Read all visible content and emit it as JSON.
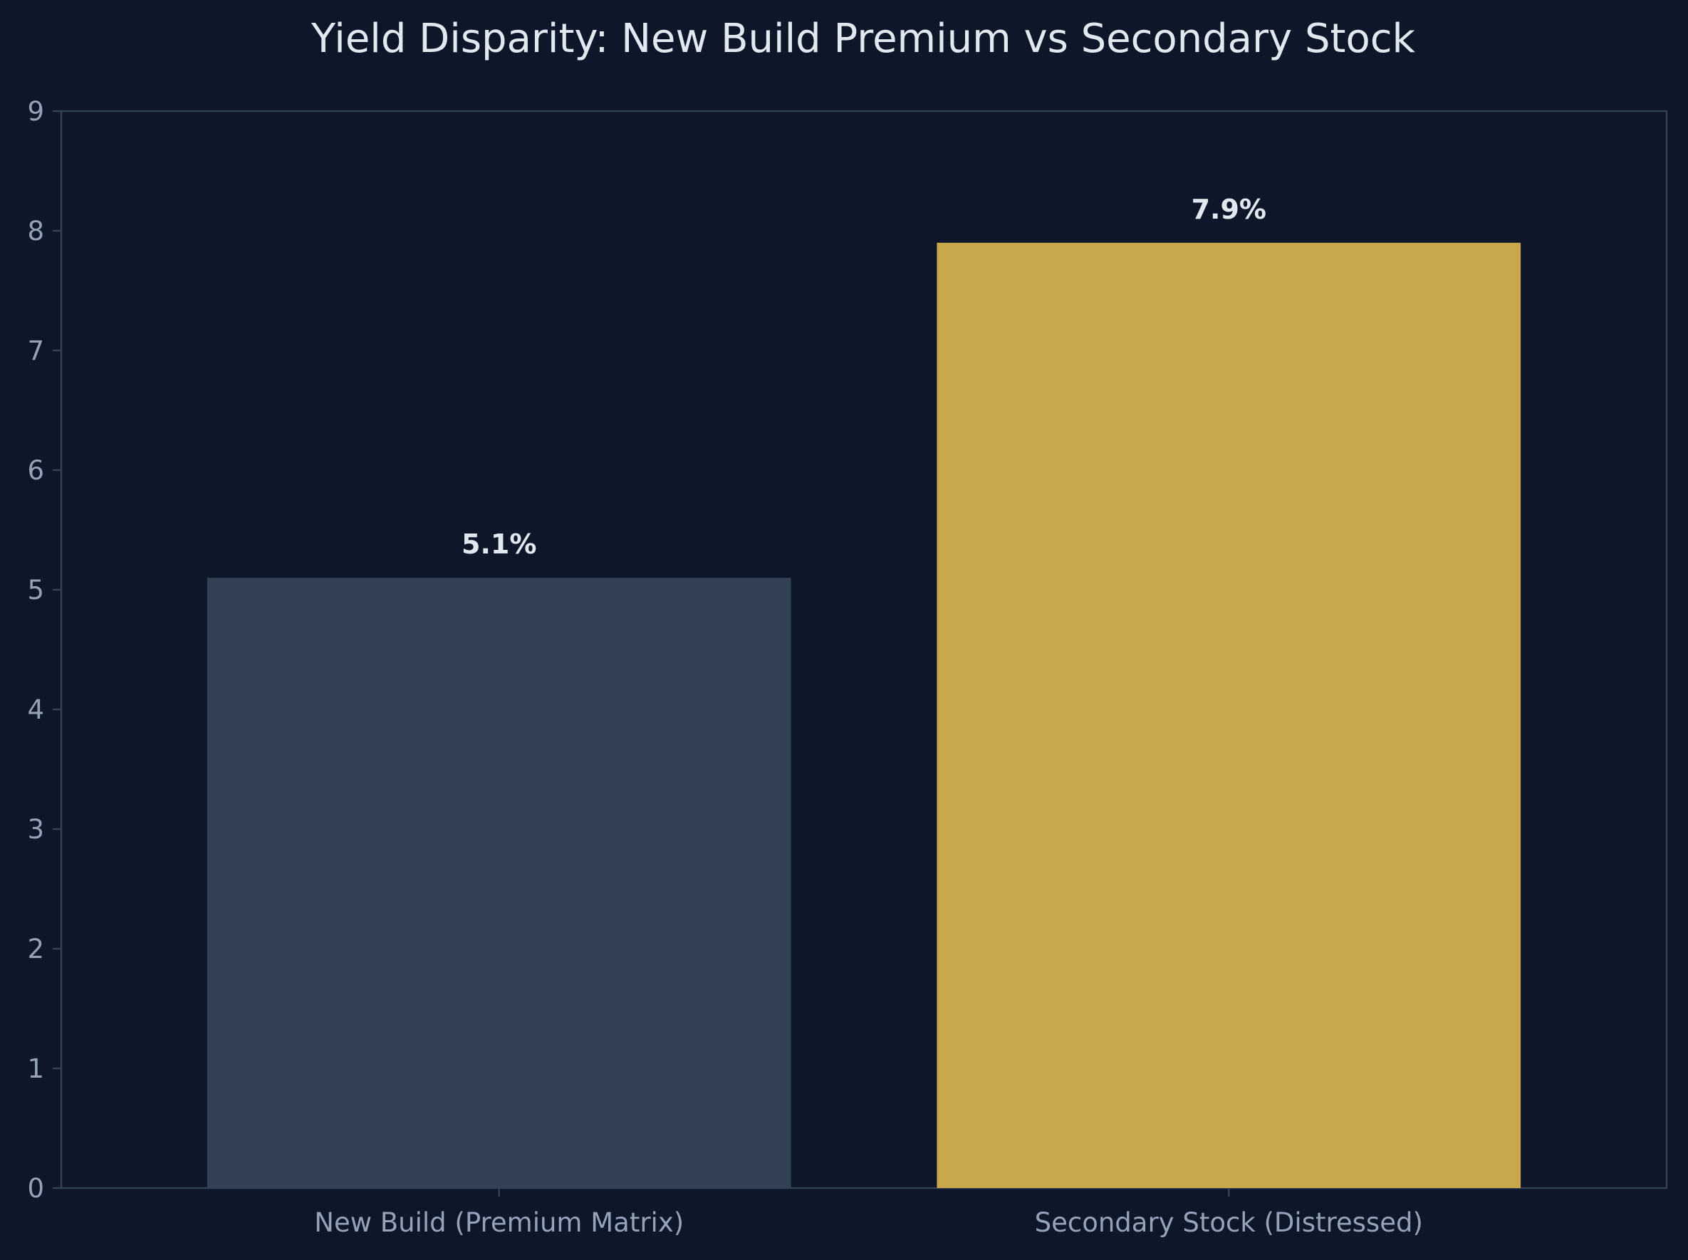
{
  "chart_data": {
    "type": "bar",
    "title": "Yield Disparity: New Build Premium vs Secondary Stock",
    "xlabel": "",
    "ylabel": "",
    "categories": [
      "New Build (Premium Matrix)",
      "Secondary Stock (Distressed)"
    ],
    "values": [
      5.1,
      7.9
    ],
    "value_labels": [
      "5.1%",
      "7.9%"
    ],
    "bar_colors": [
      "#334155",
      "#c9a74b"
    ],
    "ylim": [
      0,
      9
    ],
    "yticks": [
      0,
      1,
      2,
      3,
      4,
      5,
      6,
      7,
      8,
      9
    ],
    "grid": false,
    "legend": "none"
  },
  "colors": {
    "background": "#0e172a",
    "axis": "#334155",
    "tick_text": "#94a3b8",
    "title_text": "#e2e8f0",
    "label_text": "#e2e8f0"
  }
}
